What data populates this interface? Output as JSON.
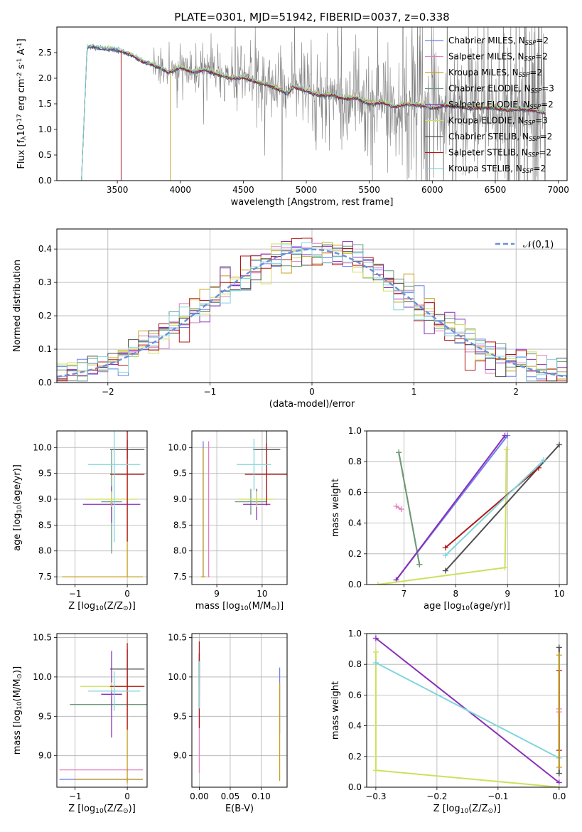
{
  "figure_title": "PLATE=0301, MJD=51942, FIBERID=0037, z=0.338",
  "model_colors": [
    "#6e7ff2",
    "#e37fc0",
    "#c8a020",
    "#6a9a7e",
    "#8a2fb8",
    "#cde05a",
    "#505050",
    "#b01818",
    "#7fd6dc"
  ],
  "chart_data": [
    {
      "id": "spectrum",
      "type": "line",
      "xlabel": "wavelength [Angstrom, rest frame]",
      "ylabel": "Flux [f$_\\lambda$10$^{-17}$ erg cm$^{-2}$ s$^{-1}$ A$^{-1}$]",
      "xlim": [
        3020,
        7070
      ],
      "ylim": [
        0,
        3.0
      ],
      "xticks": [
        3500,
        4000,
        4500,
        5000,
        5500,
        6000,
        6500,
        7000
      ],
      "yticks": [
        0.0,
        0.5,
        1.0,
        1.5,
        2.0,
        2.5
      ],
      "grid": false,
      "legend_position": "top-right",
      "continuum": {
        "x": [
          3215,
          3260,
          3300,
          3400,
          3500,
          3600,
          3700,
          3800,
          3850,
          3900,
          3950,
          4000,
          4100,
          4200,
          4300,
          4400,
          4500,
          4600,
          4700,
          4800,
          4850,
          4900,
          5000,
          5100,
          5200,
          5300,
          5400,
          5500,
          5600,
          5700,
          5800,
          5900,
          6000,
          6100,
          6200,
          6300,
          6400,
          6500,
          6600,
          6700,
          6800,
          6900
        ],
        "y": [
          0.0,
          2.62,
          2.62,
          2.58,
          2.56,
          2.47,
          2.33,
          2.25,
          2.2,
          2.12,
          2.15,
          2.22,
          2.12,
          2.17,
          2.08,
          2.0,
          2.02,
          1.93,
          1.87,
          1.77,
          1.7,
          1.84,
          1.76,
          1.67,
          1.68,
          1.61,
          1.62,
          1.5,
          1.53,
          1.45,
          1.5,
          1.48,
          1.42,
          1.48,
          1.45,
          1.42,
          1.43,
          1.42,
          1.38,
          1.4,
          1.38,
          1.32
        ]
      },
      "data_noisy_range": [
        3780,
        6900
      ]
    },
    {
      "id": "residuals",
      "type": "histogram",
      "xlabel": "(data-model)/error",
      "ylabel": "Normed distribution",
      "xlim": [
        -2.5,
        2.5
      ],
      "ylim": [
        0,
        0.46
      ],
      "xticks": [
        -2,
        -1,
        0,
        1,
        2
      ],
      "yticks": [
        0.0,
        0.1,
        0.2,
        0.3,
        0.4
      ],
      "grid": true,
      "legend": "$\\mathcal{N}(0,1)$",
      "legend_position": "top-right",
      "bin_width": 0.1
    },
    {
      "id": "age_vs_Z",
      "type": "errorbar",
      "xlabel": "Z [log$_{10}$(Z/Z$_\\odot$)]",
      "ylabel": "age  [log$_{10}$(age/yr)]",
      "xlim": [
        -1.35,
        0.38
      ],
      "ylim": [
        7.35,
        10.32
      ],
      "xticks": [
        -1,
        0
      ],
      "yticks": [
        7.5,
        8.0,
        8.5,
        9.0,
        9.5,
        10.0
      ],
      "grid": true,
      "points": [
        {
          "c": 0,
          "x": -0.3,
          "y": 8.92,
          "xe": 0.02,
          "ye": 0.1
        },
        {
          "c": 1,
          "x": -0.3,
          "y": 8.88,
          "xe": 0.02,
          "ye": 0.1
        },
        {
          "c": 2,
          "x": 0.0,
          "y": 7.5,
          "xlo": 1.25,
          "xhi": 0.3,
          "ylo": 0.0,
          "yhi": 2.5
        },
        {
          "c": 3,
          "x": -0.3,
          "y": 8.95,
          "xe": 0.2,
          "ye": 1.0
        },
        {
          "c": 4,
          "x": -0.3,
          "y": 8.9,
          "xe": 0.55,
          "ye": 0.35
        },
        {
          "c": 5,
          "x": -0.3,
          "y": 9.0,
          "xe": 0.5,
          "ye": 0.15
        },
        {
          "c": 6,
          "x": 0.0,
          "y": 9.96,
          "xe": 0.33,
          "ye": 0.18
        },
        {
          "c": 7,
          "x": 0.0,
          "y": 9.48,
          "xe": 0.33,
          "ye": 1.3
        },
        {
          "c": 8,
          "x": -0.25,
          "y": 9.67,
          "xe": 0.5,
          "ye": 1.5
        }
      ]
    },
    {
      "id": "age_vs_mass",
      "type": "errorbar",
      "xlabel": "mass [log$_{10}$(M/M$_\\odot$)]",
      "xlim": [
        8.45,
        10.55
      ],
      "ylim": [
        7.35,
        10.32
      ],
      "xticks": [
        9,
        10
      ],
      "yticks": [
        7.5,
        8.0,
        8.5,
        9.0,
        9.5,
        10.0
      ],
      "grid": true,
      "points": [
        {
          "c": 0,
          "x": 8.7,
          "y": 7.5,
          "xe": 0.02,
          "ye": 0.0,
          "yhi": 2.62
        },
        {
          "c": 1,
          "x": 8.82,
          "y": 7.5,
          "xe": 0.02,
          "ye": 0.0,
          "yhi": 2.62
        },
        {
          "c": 2,
          "x": 8.7,
          "y": 7.5,
          "xe": 0.05,
          "ye": 0.0,
          "yhi": 2.5
        },
        {
          "c": 3,
          "x": 9.75,
          "y": 8.95,
          "xe": 0.35,
          "ye": 0.25
        },
        {
          "c": 4,
          "x": 9.88,
          "y": 8.9,
          "xe": 0.3,
          "ye": 0.3
        },
        {
          "c": 5,
          "x": 9.88,
          "y": 9.0,
          "xe": 0.4,
          "ye": 0.15
        },
        {
          "c": 6,
          "x": 10.1,
          "y": 9.96,
          "xe": 0.3,
          "ye": 1.0
        },
        {
          "c": 7,
          "x": 10.1,
          "y": 9.48,
          "xe": 0.48,
          "ye": 0.6
        },
        {
          "c": 8,
          "x": 9.82,
          "y": 9.67,
          "xe": 0.38,
          "ye": 0.5
        }
      ]
    },
    {
      "id": "weight_vs_age",
      "type": "line",
      "xlabel": "age  [log$_{10}$(age/yr)]",
      "ylabel": "mass weight",
      "xlim": [
        6.28,
        10.15
      ],
      "ylim": [
        0,
        1.0
      ],
      "xticks": [
        7,
        8,
        9,
        10
      ],
      "yticks": [
        0.0,
        0.2,
        0.4,
        0.6,
        0.8,
        1.0
      ],
      "grid": true,
      "series": [
        {
          "c": 0,
          "points": [
            [
              6.85,
              0.03
            ],
            [
              9.0,
              0.97
            ]
          ]
        },
        {
          "c": 1,
          "points": [
            [
              6.85,
              0.51
            ],
            [
              6.95,
              0.49
            ]
          ]
        },
        {
          "c": 2,
          "points": [
            [
              6.9,
              0.86
            ],
            [
              7.3,
              0.13
            ]
          ]
        },
        {
          "c": 3,
          "points": [
            [
              6.9,
              0.86
            ],
            [
              7.3,
              0.13
            ]
          ]
        },
        {
          "c": 4,
          "points": [
            [
              6.85,
              0.03
            ],
            [
              8.95,
              0.97
            ]
          ]
        },
        {
          "c": 5,
          "points": [
            [
              6.5,
              0.0
            ],
            [
              8.95,
              0.11
            ],
            [
              8.98,
              0.88
            ]
          ]
        },
        {
          "c": 6,
          "points": [
            [
              7.8,
              0.09
            ],
            [
              10.0,
              0.91
            ]
          ]
        },
        {
          "c": 7,
          "points": [
            [
              7.8,
              0.24
            ],
            [
              9.6,
              0.76
            ]
          ]
        },
        {
          "c": 8,
          "points": [
            [
              7.8,
              0.19
            ],
            [
              9.7,
              0.81
            ]
          ]
        }
      ]
    },
    {
      "id": "mass_vs_Z",
      "type": "errorbar",
      "xlabel": "Z [log$_{10}$(Z/Z$_\\odot$)]",
      "ylabel": "mass [log$_{10}$(M/M$_\\odot$)]",
      "xlim": [
        -1.35,
        0.38
      ],
      "ylim": [
        8.6,
        10.55
      ],
      "xticks": [
        -1,
        0
      ],
      "yticks": [
        9.0,
        9.5,
        10.0,
        10.5
      ],
      "grid": true,
      "points": [
        {
          "c": 0,
          "x": 0.0,
          "y": 8.7,
          "xlo": 1.3,
          "xhi": 0.3,
          "ye": 0.02
        },
        {
          "c": 1,
          "x": 0.0,
          "y": 8.82,
          "xlo": 1.3,
          "xhi": 0.3,
          "ye": 0.02
        },
        {
          "c": 2,
          "x": 0.0,
          "y": 8.7,
          "xlo": 1.0,
          "xhi": 0.3,
          "ylo": 0.05,
          "yhi": 1.3
        },
        {
          "c": 3,
          "x": -0.3,
          "y": 9.65,
          "xe": 0.8,
          "ye": 0.08
        },
        {
          "c": 4,
          "x": -0.3,
          "y": 9.78,
          "xe": 0.2,
          "ye": 0.55
        },
        {
          "c": 5,
          "x": -0.3,
          "y": 9.88,
          "xe": 0.6,
          "ye": 0.05
        },
        {
          "c": 6,
          "x": 0.0,
          "y": 10.1,
          "xe": 0.33,
          "ye": 0.25
        },
        {
          "c": 7,
          "x": 0.0,
          "y": 9.88,
          "xe": 0.33,
          "ye": 0.55
        },
        {
          "c": 8,
          "x": -0.25,
          "y": 9.82,
          "xe": 0.5,
          "ye": 0.25
        }
      ]
    },
    {
      "id": "mass_vs_ebv",
      "type": "errorbar",
      "xlabel": "E(B-V)",
      "xlim": [
        -0.012,
        0.142
      ],
      "ylim": [
        8.6,
        10.55
      ],
      "xticks": [
        0.0,
        0.05,
        0.1
      ],
      "xticklabels": [
        "0.00",
        "0.05",
        "0.10"
      ],
      "yticks": [
        9.0,
        9.5,
        10.0,
        10.5
      ],
      "grid": true,
      "points": [
        {
          "c": 0,
          "x": 0.13,
          "y": 9.7,
          "ye": 0.42
        },
        {
          "c": 1,
          "x": 0.0,
          "y": 9.5,
          "ye": 0.72
        },
        {
          "c": 2,
          "x": 0.13,
          "y": 9.3,
          "ye": 0.62
        },
        {
          "c": 3,
          "x": 0.0,
          "y": 9.9,
          "ye": 0.3
        },
        {
          "c": 4,
          "x": 0.0,
          "y": 10.0,
          "ye": 0.3
        },
        {
          "c": 5,
          "x": 0.0,
          "y": 9.9,
          "ye": 0.2
        },
        {
          "c": 6,
          "x": 0.0,
          "y": 10.1,
          "ye": 0.2
        },
        {
          "c": 7,
          "x": 0.0,
          "y": 9.9,
          "ye": 0.55
        },
        {
          "c": 8,
          "x": 0.0,
          "y": 9.9,
          "ye": 0.3
        }
      ]
    },
    {
      "id": "weight_vs_Z",
      "type": "line",
      "xlabel": "Z [log$_{10}$(Z/Z$_\\odot$)]",
      "ylabel": "mass weight",
      "xlim": [
        -0.315,
        0.013
      ],
      "ylim": [
        0,
        1.0
      ],
      "xticks": [
        -0.3,
        -0.2,
        -0.1,
        0.0
      ],
      "xticklabels": [
        "−0.3",
        "−0.2",
        "−0.1",
        "0.0"
      ],
      "yticks": [
        0.0,
        0.2,
        0.4,
        0.6,
        0.8,
        1.0
      ],
      "grid": true,
      "series": [
        {
          "c": 4,
          "points": [
            [
              -0.3,
              0.97
            ],
            [
              0.0,
              0.03
            ]
          ]
        },
        {
          "c": 5,
          "points": [
            [
              -0.3,
              0.88
            ],
            [
              -0.3,
              0.11
            ],
            [
              0.0,
              0.0
            ]
          ]
        },
        {
          "c": 8,
          "points": [
            [
              -0.3,
              0.81
            ],
            [
              0.0,
              0.19
            ]
          ]
        },
        {
          "c": 6,
          "points": [
            [
              0.0,
              0.91
            ],
            [
              0.0,
              0.09
            ]
          ]
        },
        {
          "c": 7,
          "points": [
            [
              0.0,
              0.76
            ],
            [
              0.0,
              0.24
            ]
          ]
        },
        {
          "c": 1,
          "points": [
            [
              0.0,
              0.51
            ],
            [
              0.0,
              0.49
            ]
          ]
        },
        {
          "c": 2,
          "points": [
            [
              0.0,
              0.86
            ],
            [
              0.0,
              0.13
            ]
          ]
        }
      ]
    }
  ],
  "legend_entries": [
    {
      "label": "Chabrier MILES, N",
      "sub": "SSP",
      "suffix": "=2"
    },
    {
      "label": "Salpeter MILES, N",
      "sub": "SSP",
      "suffix": "=2"
    },
    {
      "label": "Kroupa MILES, N",
      "sub": "SSP",
      "suffix": "=2"
    },
    {
      "label": "Chabrier ELODIE, N",
      "sub": "SSP",
      "suffix": "=3"
    },
    {
      "label": "Salpeter ELODIE, N",
      "sub": "SSP",
      "suffix": "=2"
    },
    {
      "label": "Kroupa ELODIE, N",
      "sub": "SSP",
      "suffix": "=3"
    },
    {
      "label": "Chabrier STELIB, N",
      "sub": "SSP",
      "suffix": "=2"
    },
    {
      "label": "Salpeter STELIB, N",
      "sub": "SSP",
      "suffix": "=2"
    },
    {
      "label": "Kroupa STELIB, N",
      "sub": "SSP",
      "suffix": "=2"
    }
  ]
}
